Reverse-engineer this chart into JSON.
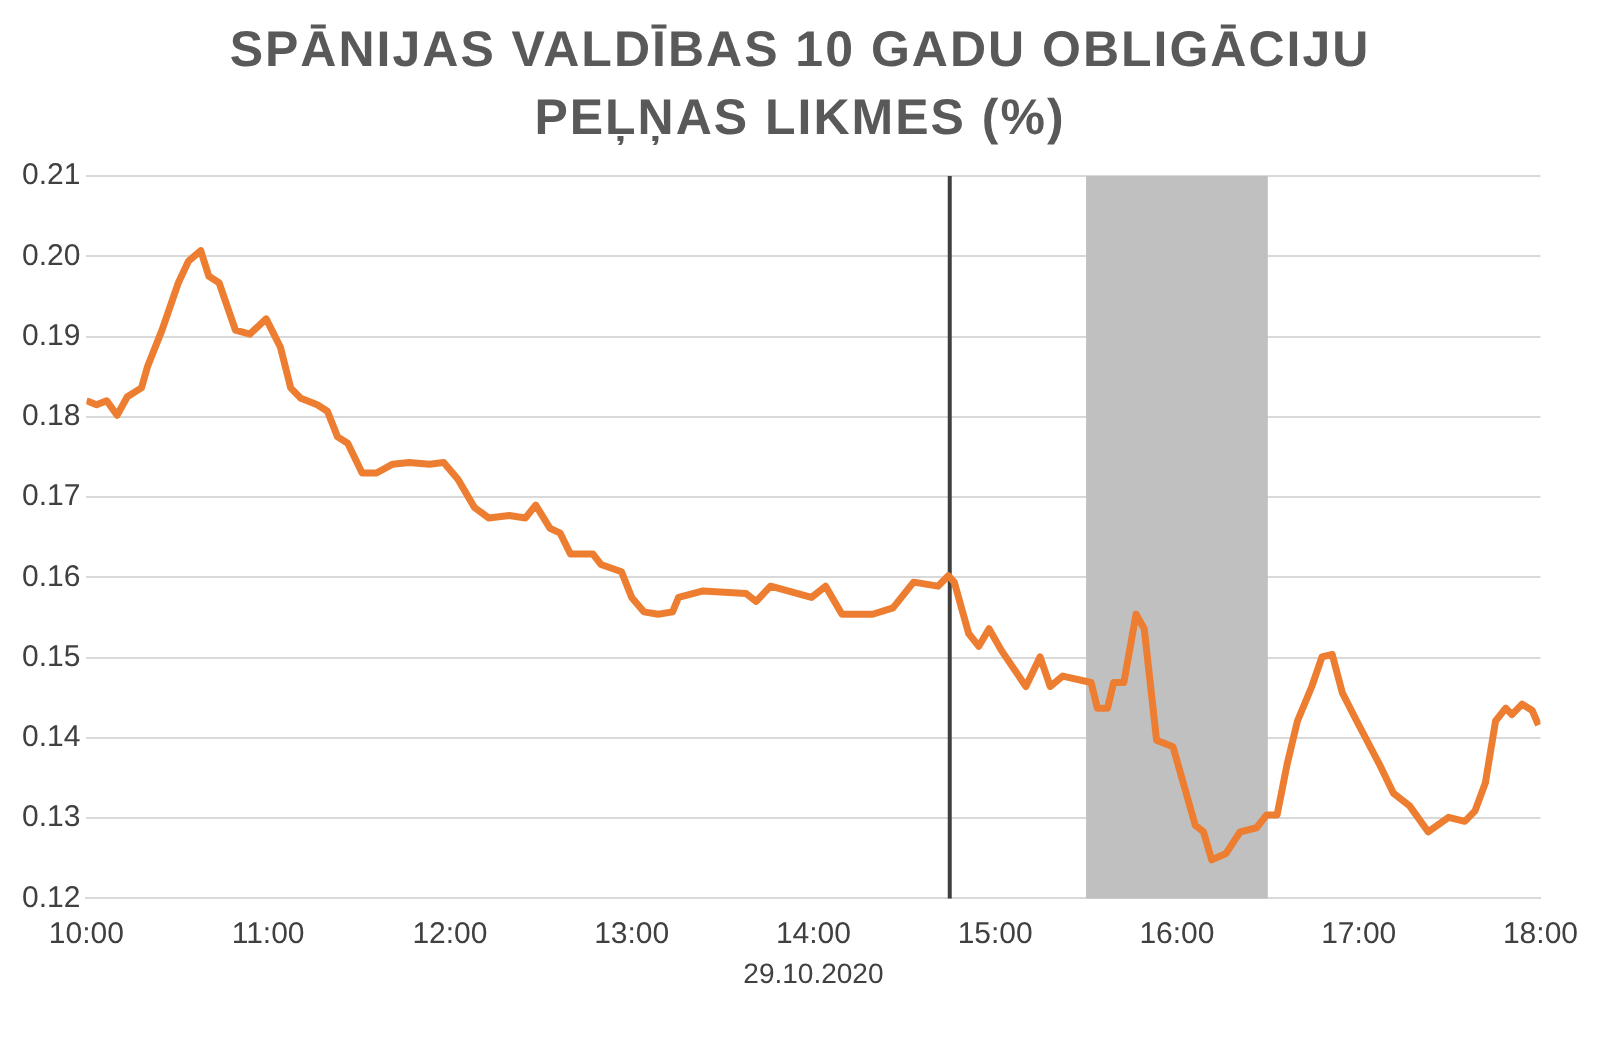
{
  "chart_data": {
    "type": "line",
    "title": "SPĀNIJAS VALDĪBAS 10 GADU OBLIGĀCIJU PEĻŅAS LIKMES (%)",
    "xlabel": "29.10.2020",
    "x": [
      10.0,
      10.056,
      10.112,
      10.169,
      10.225,
      10.303,
      10.337,
      10.416,
      10.506,
      10.562,
      10.629,
      10.674,
      10.73,
      10.82,
      10.899,
      10.989,
      11.067,
      11.124,
      11.18,
      11.27,
      11.326,
      11.382,
      11.438,
      11.517,
      11.596,
      11.685,
      11.775,
      11.888,
      11.966,
      12.045,
      12.135,
      12.213,
      12.326,
      12.416,
      12.472,
      12.551,
      12.607,
      12.663,
      12.787,
      12.831,
      12.944,
      13.0,
      13.067,
      13.146,
      13.225,
      13.258,
      13.393,
      13.629,
      13.685,
      13.764,
      13.989,
      14.067,
      14.157,
      14.326,
      14.438,
      14.551,
      14.685,
      14.742,
      14.775,
      14.854,
      14.91,
      14.966,
      15.034,
      15.169,
      15.247,
      15.303,
      15.371,
      15.528,
      15.562,
      15.618,
      15.652,
      15.708,
      15.775,
      15.82,
      15.888,
      15.978,
      16.101,
      16.146,
      16.191,
      16.27,
      16.348,
      16.438,
      16.494,
      16.551,
      16.607,
      16.663,
      16.742,
      16.798,
      16.854,
      16.91,
      16.989,
      17.112,
      17.191,
      17.281,
      17.382,
      17.494,
      17.584,
      17.64,
      17.697,
      17.753,
      17.809,
      17.843,
      17.899,
      17.955,
      17.989
    ],
    "series": [
      {
        "color": "#ed7d31",
        "values": [
          0.182,
          0.1815,
          0.182,
          0.1802,
          0.1825,
          0.1836,
          0.1863,
          0.1908,
          0.1967,
          0.1994,
          0.2007,
          0.1975,
          0.1967,
          0.1908,
          0.1903,
          0.1922,
          0.1887,
          0.1836,
          0.1823,
          0.1815,
          0.1807,
          0.1775,
          0.1767,
          0.173,
          0.173,
          0.1741,
          0.1743,
          0.1741,
          0.1743,
          0.1722,
          0.1687,
          0.1674,
          0.1677,
          0.1674,
          0.169,
          0.1661,
          0.1655,
          0.1629,
          0.1629,
          0.1616,
          0.1607,
          0.1575,
          0.1557,
          0.1554,
          0.1557,
          0.1575,
          0.1583,
          0.158,
          0.157,
          0.1589,
          0.1575,
          0.1589,
          0.1554,
          0.1554,
          0.1562,
          0.1594,
          0.1589,
          0.1602,
          0.1594,
          0.153,
          0.1514,
          0.1536,
          0.1509,
          0.1464,
          0.1501,
          0.1464,
          0.1477,
          0.1469,
          0.1437,
          0.1437,
          0.1469,
          0.1469,
          0.1554,
          0.1536,
          0.1397,
          0.1389,
          0.1291,
          0.1283,
          0.1248,
          0.1256,
          0.1283,
          0.1288,
          0.1304,
          0.1304,
          0.1368,
          0.1421,
          0.1464,
          0.1501,
          0.1504,
          0.1456,
          0.1421,
          0.1368,
          0.1331,
          0.1315,
          0.1283,
          0.1301,
          0.1296,
          0.1309,
          0.1344,
          0.1421,
          0.1437,
          0.1429,
          0.1442,
          0.1434,
          0.1416
        ]
      }
    ],
    "xlim": [
      10,
      18
    ],
    "xticks": [
      {
        "value": 10,
        "label": "10:00"
      },
      {
        "value": 11,
        "label": "11:00"
      },
      {
        "value": 12,
        "label": "12:00"
      },
      {
        "value": 13,
        "label": "13:00"
      },
      {
        "value": 14,
        "label": "14:00"
      },
      {
        "value": 15,
        "label": "15:00"
      },
      {
        "value": 16,
        "label": "16:00"
      },
      {
        "value": 17,
        "label": "17:00"
      },
      {
        "value": 18,
        "label": "18:00"
      }
    ],
    "ylim": [
      0.12,
      0.21
    ],
    "yticks": [
      0.12,
      0.13,
      0.14,
      0.15,
      0.16,
      0.17,
      0.18,
      0.19,
      {
        "value": 0.2,
        "label": "0.20"
      },
      0.21
    ],
    "grid": "y",
    "legend": false,
    "marker": "none",
    "line_style": "solid",
    "ref_lines": [
      {
        "axis": "x",
        "value": 14.75,
        "color": "#404040"
      }
    ],
    "bands": [
      {
        "axis": "x",
        "from": 15.5,
        "to": 16.5,
        "color": "#c0c0c0"
      }
    ]
  }
}
